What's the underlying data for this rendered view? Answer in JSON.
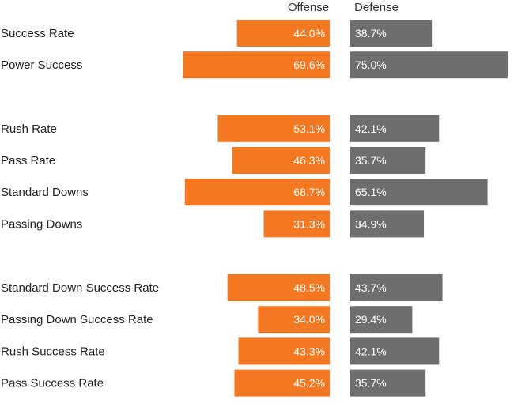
{
  "chart_data": {
    "type": "bar",
    "orientation": "horizontal-diverging",
    "title": "",
    "series": [
      {
        "name": "Offense",
        "color": "#f47721"
      },
      {
        "name": "Defense",
        "color": "#6e6e6e"
      }
    ],
    "groups": [
      {
        "rows": [
          {
            "label": "Success Rate",
            "offense": 44.0,
            "defense": 38.7,
            "offense_text": "44.0%",
            "defense_text": "38.7%"
          },
          {
            "label": "Power Success",
            "offense": 69.6,
            "defense": 75.0,
            "offense_text": "69.6%",
            "defense_text": "75.0%"
          }
        ]
      },
      {
        "rows": [
          {
            "label": "Rush Rate",
            "offense": 53.1,
            "defense": 42.1,
            "offense_text": "53.1%",
            "defense_text": "42.1%"
          },
          {
            "label": "Pass Rate",
            "offense": 46.3,
            "defense": 35.7,
            "offense_text": "46.3%",
            "defense_text": "35.7%"
          },
          {
            "label": "Standard Downs",
            "offense": 68.7,
            "defense": 65.1,
            "offense_text": "68.7%",
            "defense_text": "65.1%"
          },
          {
            "label": "Passing Downs",
            "offense": 31.3,
            "defense": 34.9,
            "offense_text": "31.3%",
            "defense_text": "34.9%"
          }
        ]
      },
      {
        "rows": [
          {
            "label": "Standard Down Success Rate",
            "offense": 48.5,
            "defense": 43.7,
            "offense_text": "48.5%",
            "defense_text": "43.7%"
          },
          {
            "label": "Passing Down Success Rate",
            "offense": 34.0,
            "defense": 29.4,
            "offense_text": "34.0%",
            "defense_text": "29.4%"
          },
          {
            "label": "Rush Success Rate",
            "offense": 43.3,
            "defense": 42.1,
            "offense_text": "43.3%",
            "defense_text": "42.1%"
          },
          {
            "label": "Pass Success Rate",
            "offense": 45.2,
            "defense": 35.7,
            "offense_text": "45.2%",
            "defense_text": "35.7%"
          }
        ]
      }
    ],
    "value_unit": "%",
    "xlim": [
      0,
      75
    ],
    "grid": false,
    "legend": "top column headers"
  }
}
